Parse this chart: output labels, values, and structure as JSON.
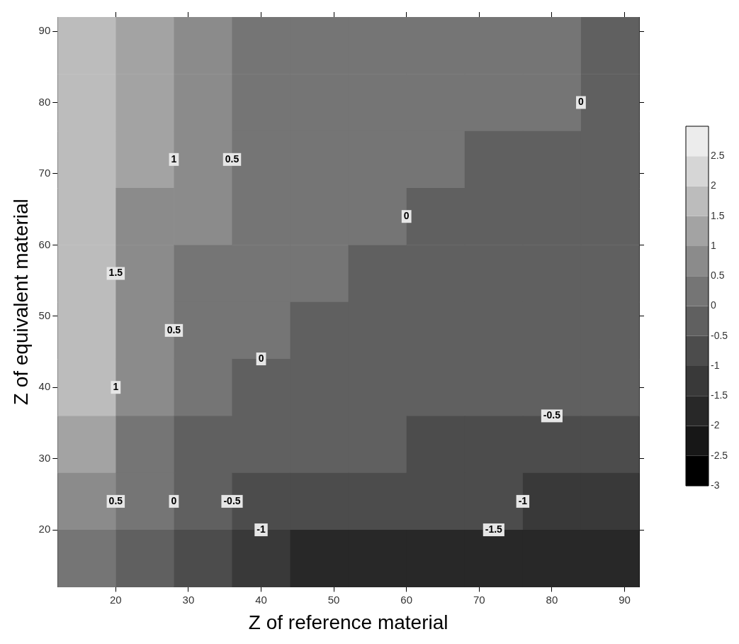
{
  "chart_data": {
    "type": "heatmap",
    "xlabel": "Z of reference material",
    "ylabel": "Z of equivalent material",
    "x": [
      16,
      24,
      32,
      40,
      48,
      56,
      64,
      72,
      80,
      88
    ],
    "y": [
      88,
      80,
      72,
      64,
      56,
      48,
      40,
      32,
      24,
      16
    ],
    "xlim": [
      12,
      92
    ],
    "xticks": [
      20,
      30,
      40,
      50,
      60,
      70,
      80,
      90
    ],
    "ylim": [
      12,
      92
    ],
    "yticks": [
      20,
      30,
      40,
      50,
      60,
      70,
      80,
      90
    ],
    "clim": [
      -3,
      3
    ],
    "cticks": [
      -3,
      -2.5,
      -2,
      -1.5,
      -1,
      -0.5,
      0,
      0.5,
      1,
      1.5,
      2,
      2.5
    ],
    "colors": [
      "#000000",
      "#171717",
      "#282828",
      "#393939",
      "#4c4c4c",
      "#606060",
      "#757575",
      "#8b8b8b",
      "#a3a3a3",
      "#bcbcbc",
      "#d6d6d6",
      "#ececec"
    ],
    "cells": [
      [
        1.75,
        1.25,
        0.75,
        0.25,
        0.25,
        0.25,
        0.25,
        0.25,
        0.25,
        -0.25
      ],
      [
        1.75,
        1.25,
        0.75,
        0.25,
        0.25,
        0.25,
        0.25,
        0.25,
        0.25,
        -0.25
      ],
      [
        1.75,
        1.25,
        0.75,
        0.25,
        0.25,
        0.25,
        0.25,
        -0.25,
        -0.25,
        -0.25
      ],
      [
        1.75,
        0.75,
        0.75,
        0.25,
        0.25,
        0.25,
        -0.25,
        -0.25,
        -0.25,
        -0.25
      ],
      [
        1.75,
        0.75,
        0.25,
        0.25,
        0.25,
        -0.25,
        -0.25,
        -0.25,
        -0.25,
        -0.25
      ],
      [
        1.75,
        0.75,
        0.25,
        0.25,
        -0.25,
        -0.25,
        -0.25,
        -0.25,
        -0.25,
        -0.25
      ],
      [
        1.75,
        0.75,
        0.25,
        -0.25,
        -0.25,
        -0.25,
        -0.25,
        -0.25,
        -0.25,
        -0.25
      ],
      [
        1.25,
        0.25,
        -0.25,
        -0.25,
        -0.25,
        -0.25,
        -0.75,
        -0.75,
        -0.75,
        -0.75
      ],
      [
        0.75,
        0.25,
        -0.25,
        -0.75,
        -0.75,
        -0.75,
        -0.75,
        -0.75,
        -1.25,
        -1.25
      ],
      [
        0.25,
        -0.25,
        -0.75,
        -1.25,
        -1.75,
        -1.75,
        -1.75,
        -1.75,
        -1.75,
        -1.75
      ]
    ],
    "annotations": [
      "1.5",
      "1",
      "0.5",
      "0",
      "0",
      "1",
      "0.5",
      "0",
      "0.5",
      "0",
      "-0.5",
      "-0.5",
      "-1",
      "-1",
      "-1.5"
    ]
  }
}
